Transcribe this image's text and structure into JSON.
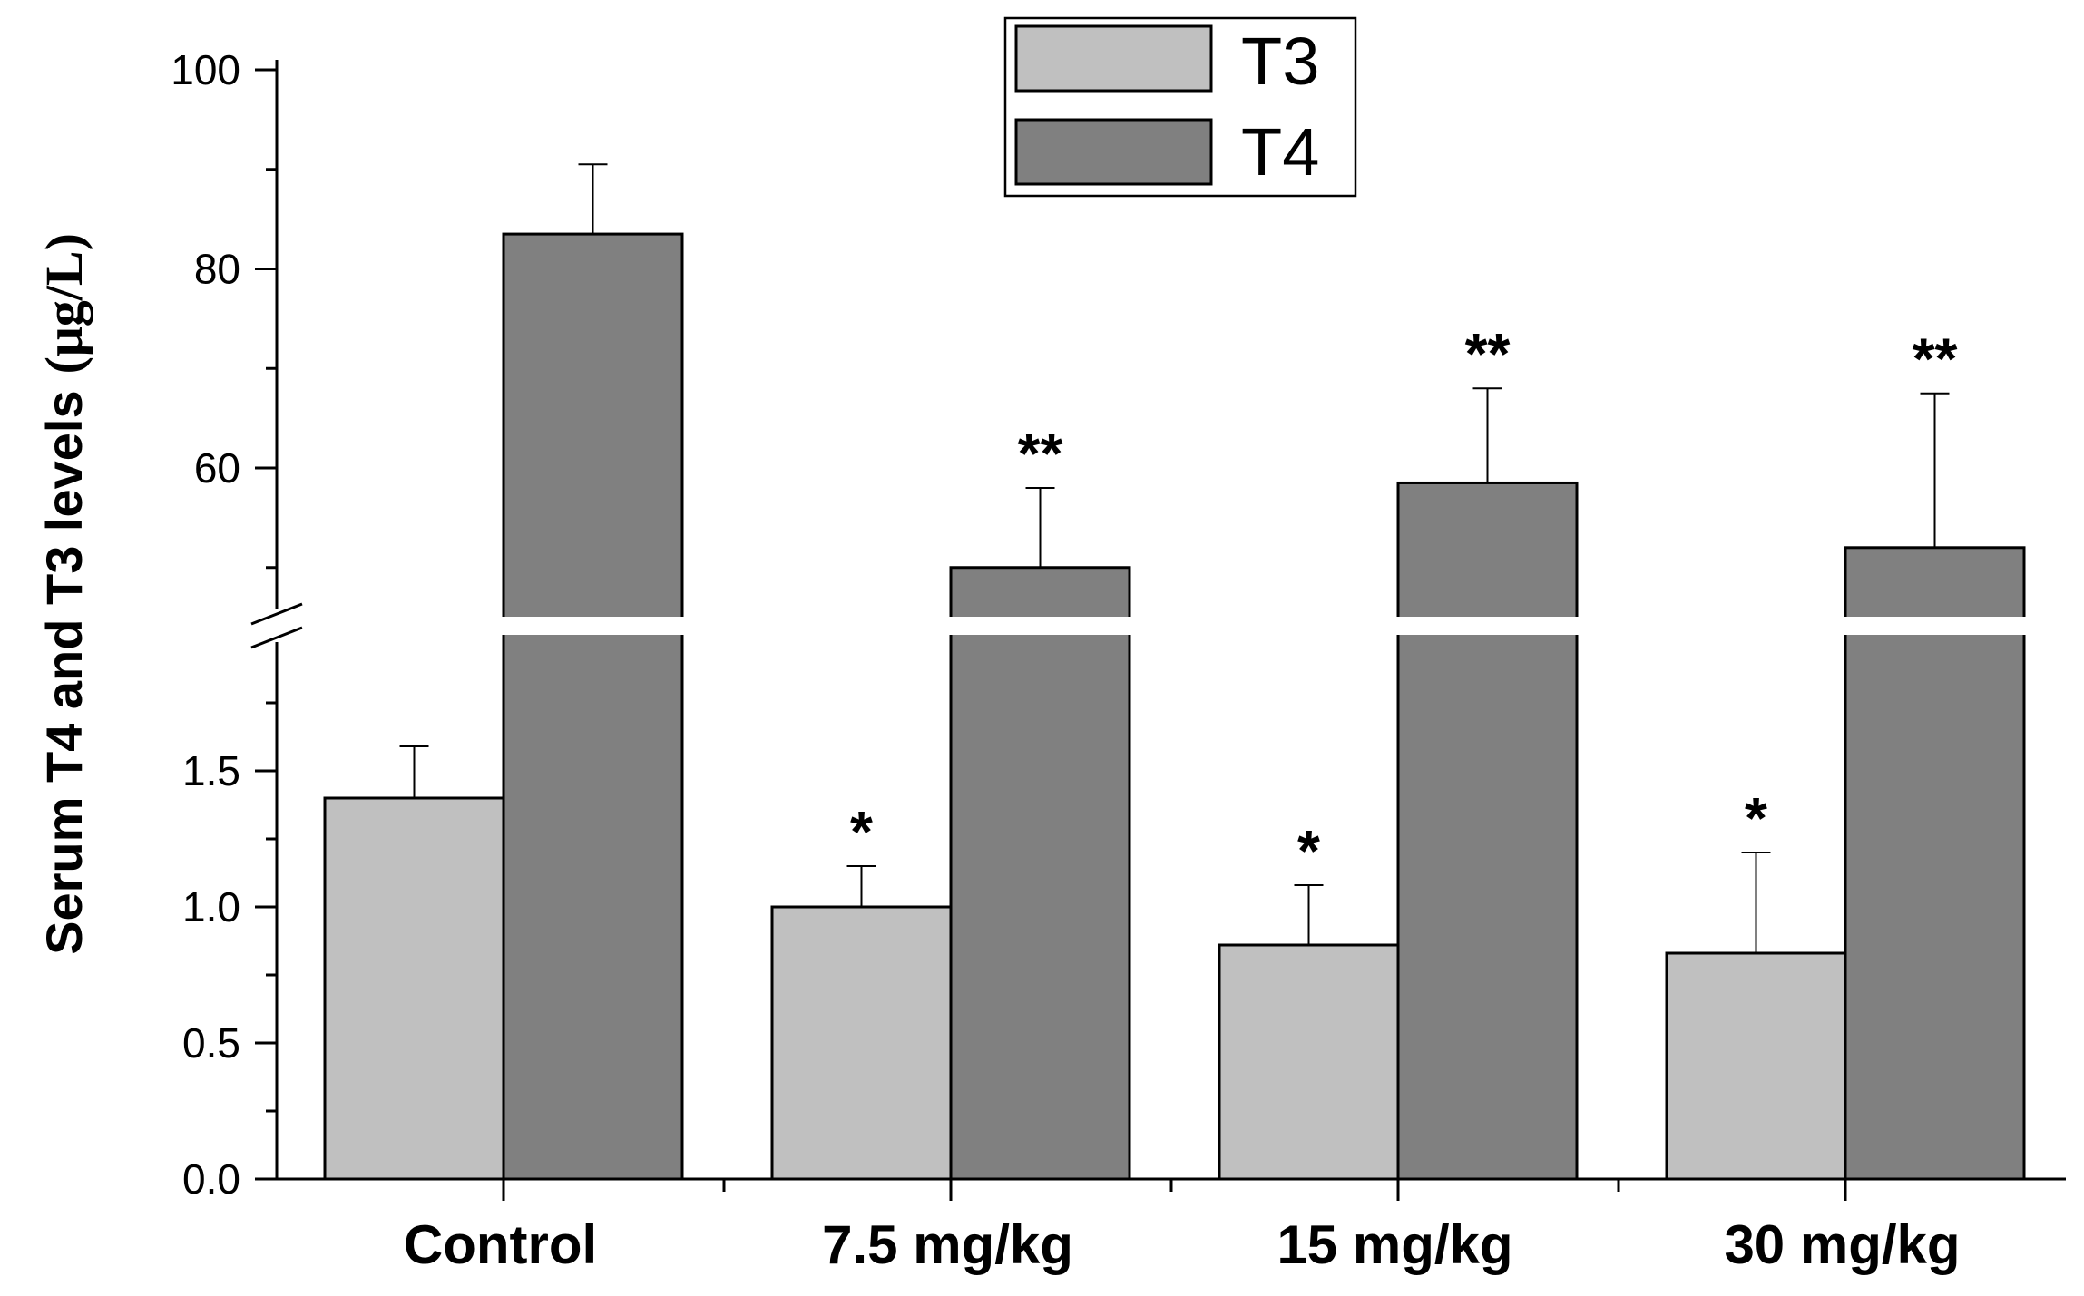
{
  "chart_data": {
    "type": "bar",
    "categories": [
      "Control",
      "7.5 mg/kg",
      "15 mg/kg",
      "30 mg/kg"
    ],
    "series": [
      {
        "name": "T3",
        "values": [
          1.4,
          1.0,
          0.86,
          0.83
        ],
        "errors": [
          0.19,
          0.15,
          0.22,
          0.37
        ],
        "significance": [
          "",
          "*",
          "*",
          "*"
        ],
        "color": "#c0c0c0"
      },
      {
        "name": "T4",
        "values": [
          83.5,
          50.0,
          58.5,
          52.0
        ],
        "errors": [
          7.0,
          8.0,
          9.5,
          15.5
        ],
        "significance": [
          "",
          "**",
          "**",
          "**"
        ],
        "color": "#808080"
      }
    ],
    "ylabel_main": "Serum T4 and T3 levels",
    "ylabel_unit": "(μg/L)",
    "xlabel": "",
    "axis_break": true,
    "lower_segment": {
      "ylim": [
        0,
        2.0
      ],
      "ticks": [
        "0.0",
        "0.5",
        "1.0",
        "1.5"
      ]
    },
    "upper_segment": {
      "ylim": [
        45,
        100
      ],
      "ticks": [
        "60",
        "80",
        "100"
      ]
    },
    "legend": [
      "T3",
      "T4"
    ],
    "legend_position": "top-center",
    "grid": false
  }
}
